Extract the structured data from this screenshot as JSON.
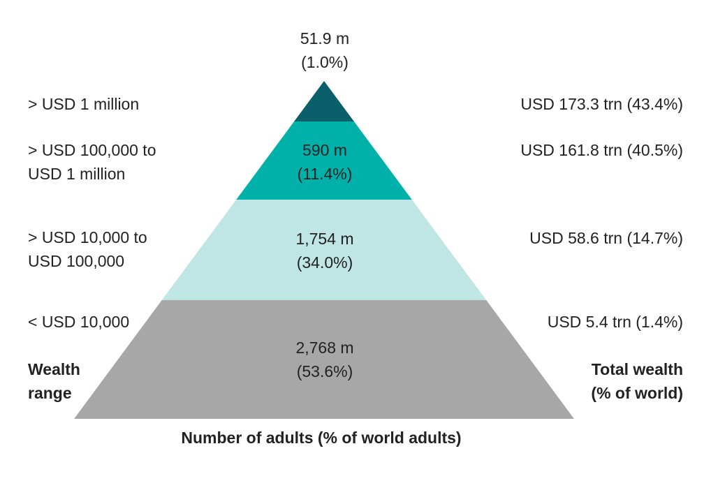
{
  "chart_data": {
    "type": "pyramid",
    "title": "",
    "left_heading": [
      "Wealth",
      "range"
    ],
    "right_heading": [
      "Total wealth",
      "(% of world)"
    ],
    "bottom_label": "Number of adults (% of world adults)",
    "tiers": [
      {
        "wealth_range": [
          "> USD 1 million"
        ],
        "adults_m": 51.9,
        "adults_pct": 1.0,
        "adults_text": [
          "51.9 m",
          "(1.0%)"
        ],
        "wealth_trn": 173.3,
        "wealth_pct": 43.4,
        "wealth_text": "USD 173.3 trn (43.4%)",
        "color": "#0b5f6b"
      },
      {
        "wealth_range": [
          "> USD 100,000 to",
          "USD 1 million"
        ],
        "adults_m": 590,
        "adults_pct": 11.4,
        "adults_text": [
          "590 m",
          "(11.4%)"
        ],
        "wealth_trn": 161.8,
        "wealth_pct": 40.5,
        "wealth_text": "USD 161.8 trn (40.5%)",
        "color": "#00b1aa"
      },
      {
        "wealth_range": [
          "> USD 10,000 to",
          "USD 100,000"
        ],
        "adults_m": 1754,
        "adults_pct": 34.0,
        "adults_text": [
          "1,754 m",
          "(34.0%)"
        ],
        "wealth_trn": 58.6,
        "wealth_pct": 14.7,
        "wealth_text": "USD 58.6 trn (14.7%)",
        "color": "#bfe6e4"
      },
      {
        "wealth_range": [
          "< USD 10,000"
        ],
        "adults_m": 2768,
        "adults_pct": 53.6,
        "adults_text": [
          "2,768 m",
          "(53.6%)"
        ],
        "wealth_trn": 5.4,
        "wealth_pct": 1.4,
        "wealth_text": "USD 5.4 trn (1.4%)",
        "color": "#a7a7a7"
      }
    ]
  }
}
